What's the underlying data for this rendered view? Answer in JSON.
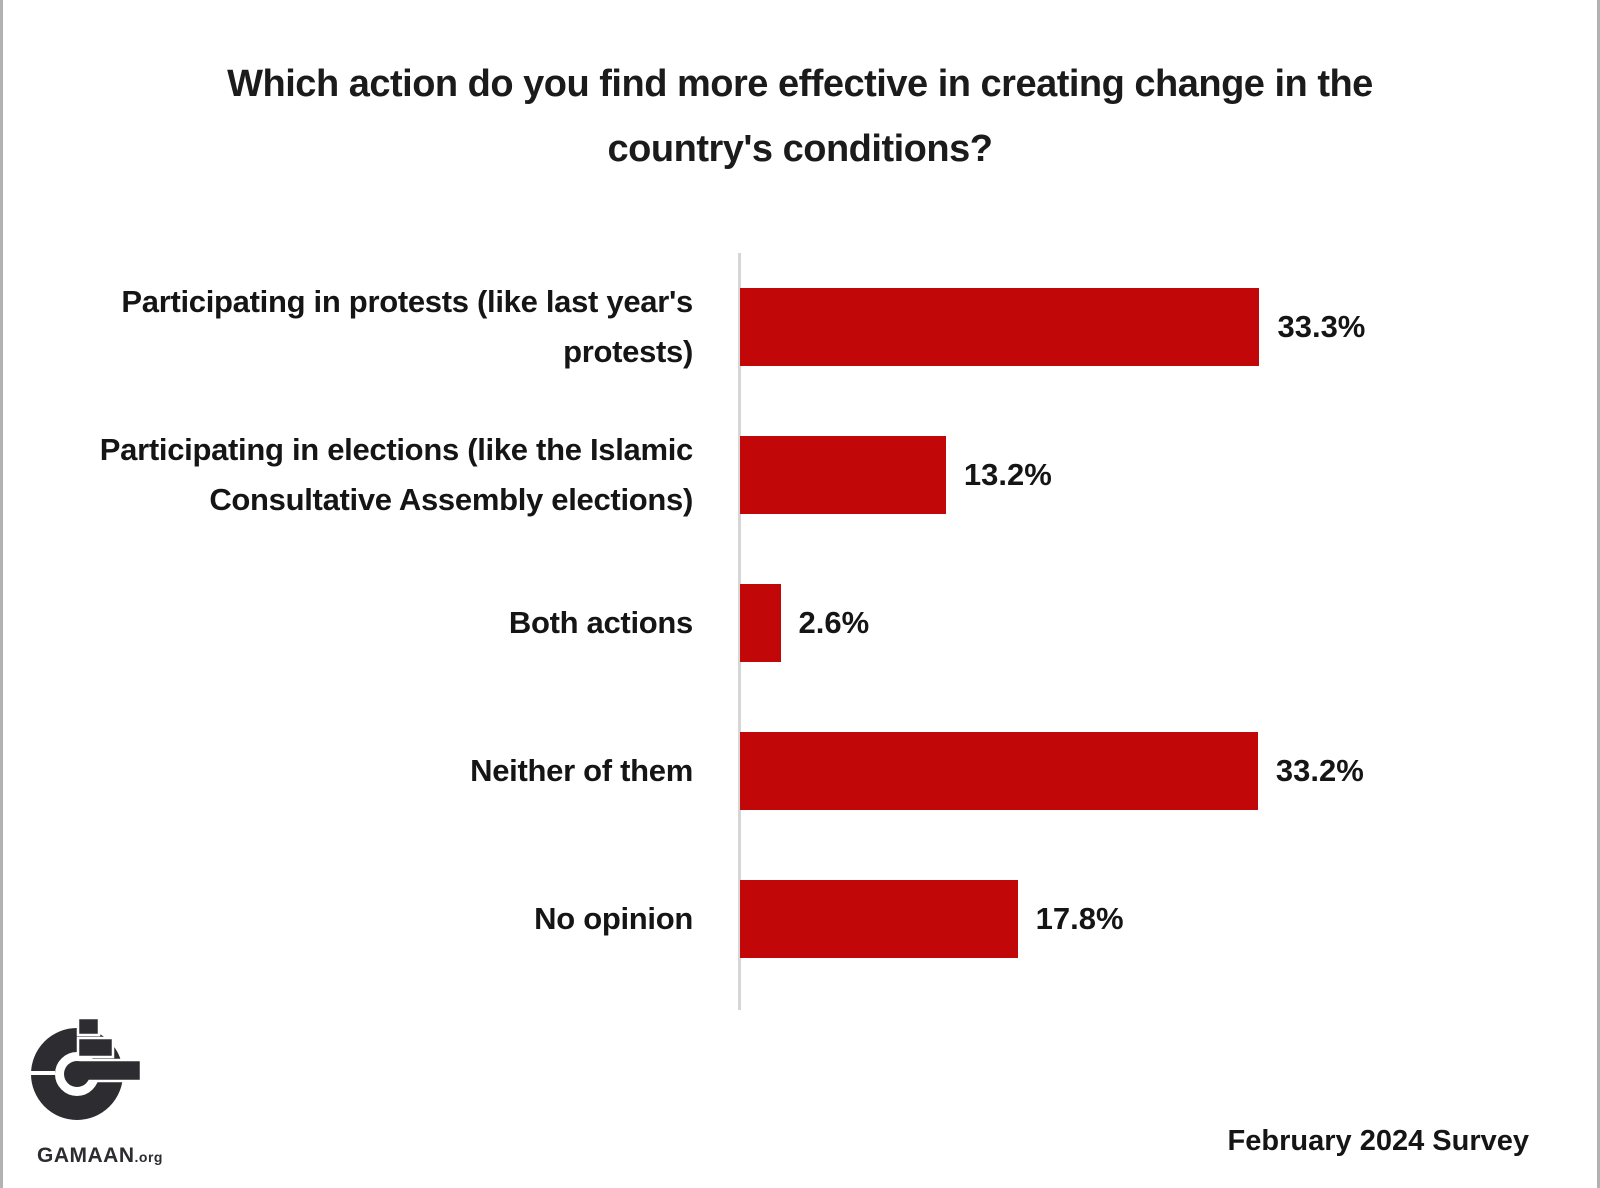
{
  "title": "Which action do you find more effective in creating change in the\ncountry's conditions?",
  "chart_data": {
    "type": "bar",
    "orientation": "horizontal",
    "title": "Which action do you find more effective in creating change in the country's conditions?",
    "categories": [
      "Participating in protests (like last year's protests)",
      "Participating in elections (like the Islamic Consultative Assembly elections)",
      "Both actions",
      "Neither of them",
      "No opinion"
    ],
    "categories_display": [
      "Participating in protests (like last year's\nprotests)",
      "Participating in elections (like the Islamic\nConsultative Assembly elections)",
      "Both actions",
      "Neither of them",
      "No opinion"
    ],
    "values": [
      33.3,
      13.2,
      2.6,
      33.2,
      17.8
    ],
    "value_labels": [
      "33.3%",
      "13.2%",
      "2.6%",
      "33.2%",
      "17.8%"
    ],
    "unit": "%",
    "xlim": [
      0,
      36
    ],
    "grid": false,
    "legend": false,
    "bar_color": "#c10707",
    "axis_color": "#d6d6d6"
  },
  "footer": {
    "survey_note": "February 2024 Survey"
  },
  "logo": {
    "name": "GAMAAN",
    "suffix": ".org"
  },
  "colors": {
    "bar": "#c10707",
    "text": "#1b1b1b",
    "axis": "#d6d6d6",
    "frame_border": "#b2b2b2",
    "logo": "#2d2c31"
  }
}
